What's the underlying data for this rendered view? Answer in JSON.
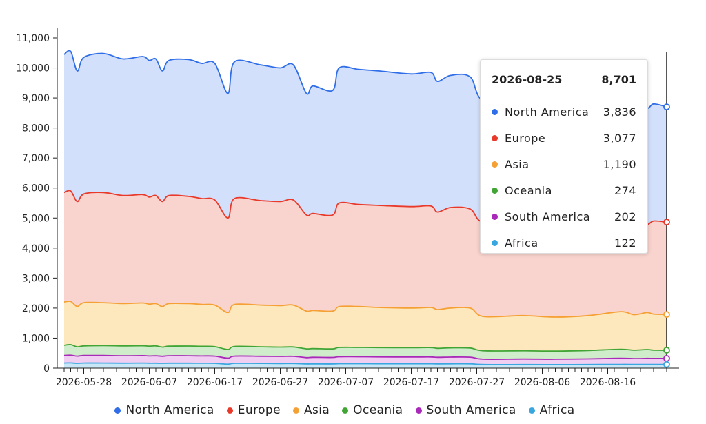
{
  "chart_data": {
    "type": "area",
    "stacked": true,
    "x_start": "2026-05-25",
    "x_end": "2026-08-25",
    "x_ticks": [
      "2026-05-28",
      "2026-06-07",
      "2026-06-17",
      "2026-06-27",
      "2026-07-07",
      "2026-07-17",
      "2026-07-27",
      "2026-08-06",
      "2026-08-16"
    ],
    "y_ticks": [
      0,
      1000,
      2000,
      3000,
      4000,
      5000,
      6000,
      7000,
      8000,
      9000,
      10000,
      11000
    ],
    "ylim": [
      0,
      11000
    ],
    "grid": false,
    "legend_position": "bottom",
    "cumulative_anchors": [
      {
        "date": "2026-05-25",
        "North America": 10450,
        "Europe": 5850,
        "Asia": 2200,
        "Oceania": 760,
        "South America": 420,
        "Africa": 170
      },
      {
        "date": "2026-05-26",
        "North America": 10550,
        "Europe": 5900,
        "Asia": 2220,
        "Oceania": 780,
        "South America": 430,
        "Africa": 175
      },
      {
        "date": "2026-05-27",
        "North America": 9900,
        "Europe": 5550,
        "Asia": 2050,
        "Oceania": 710,
        "South America": 400,
        "Africa": 160
      },
      {
        "date": "2026-05-28",
        "North America": 10350,
        "Europe": 5800,
        "Asia": 2180,
        "Oceania": 740,
        "South America": 420,
        "Africa": 170
      },
      {
        "date": "2026-05-31",
        "North America": 10480,
        "Europe": 5850,
        "Asia": 2180,
        "Oceania": 750,
        "South America": 420,
        "Africa": 170
      },
      {
        "date": "2026-06-03",
        "North America": 10300,
        "Europe": 5750,
        "Asia": 2150,
        "Oceania": 740,
        "South America": 410,
        "Africa": 165
      },
      {
        "date": "2026-06-06",
        "North America": 10380,
        "Europe": 5780,
        "Asia": 2170,
        "Oceania": 745,
        "South America": 415,
        "Africa": 170
      },
      {
        "date": "2026-06-07",
        "North America": 10250,
        "Europe": 5700,
        "Asia": 2130,
        "Oceania": 730,
        "South America": 405,
        "Africa": 165
      },
      {
        "date": "2026-06-08",
        "North America": 10300,
        "Europe": 5750,
        "Asia": 2150,
        "Oceania": 740,
        "South America": 410,
        "Africa": 165
      },
      {
        "date": "2026-06-09",
        "North America": 9900,
        "Europe": 5550,
        "Asia": 2050,
        "Oceania": 700,
        "South America": 395,
        "Africa": 160
      },
      {
        "date": "2026-06-10",
        "North America": 10250,
        "Europe": 5750,
        "Asia": 2150,
        "Oceania": 730,
        "South America": 410,
        "Africa": 165
      },
      {
        "date": "2026-06-13",
        "North America": 10280,
        "Europe": 5720,
        "Asia": 2150,
        "Oceania": 735,
        "South America": 410,
        "Africa": 165
      },
      {
        "date": "2026-06-15",
        "North America": 10150,
        "Europe": 5650,
        "Asia": 2120,
        "Oceania": 725,
        "South America": 405,
        "Africa": 163
      },
      {
        "date": "2026-06-17",
        "North America": 10150,
        "Europe": 5600,
        "Asia": 2100,
        "Oceania": 715,
        "South America": 400,
        "Africa": 160
      },
      {
        "date": "2026-06-19",
        "North America": 9150,
        "Europe": 5000,
        "Asia": 1850,
        "Oceania": 620,
        "South America": 330,
        "Africa": 130
      },
      {
        "date": "2026-06-20",
        "North America": 10200,
        "Europe": 5650,
        "Asia": 2120,
        "Oceania": 720,
        "South America": 400,
        "Africa": 160
      },
      {
        "date": "2026-06-24",
        "North America": 10100,
        "Europe": 5580,
        "Asia": 2100,
        "Oceania": 710,
        "South America": 395,
        "Africa": 158
      },
      {
        "date": "2026-06-27",
        "North America": 10000,
        "Europe": 5550,
        "Asia": 2080,
        "Oceania": 700,
        "South America": 390,
        "Africa": 155
      },
      {
        "date": "2026-06-29",
        "North America": 10100,
        "Europe": 5600,
        "Asia": 2100,
        "Oceania": 705,
        "South America": 392,
        "Africa": 156
      },
      {
        "date": "2026-07-01",
        "North America": 9150,
        "Europe": 5100,
        "Asia": 1900,
        "Oceania": 640,
        "South America": 350,
        "Africa": 140
      },
      {
        "date": "2026-07-02",
        "North America": 9400,
        "Europe": 5150,
        "Asia": 1920,
        "Oceania": 650,
        "South America": 360,
        "Africa": 142
      },
      {
        "date": "2026-07-05",
        "North America": 9250,
        "Europe": 5100,
        "Asia": 1900,
        "Oceania": 640,
        "South America": 355,
        "Africa": 140
      },
      {
        "date": "2026-07-06",
        "North America": 10000,
        "Europe": 5500,
        "Asia": 2050,
        "Oceania": 690,
        "South America": 380,
        "Africa": 150
      },
      {
        "date": "2026-07-09",
        "North America": 9950,
        "Europe": 5450,
        "Asia": 2050,
        "Oceania": 690,
        "South America": 380,
        "Africa": 150
      },
      {
        "date": "2026-07-12",
        "North America": 9900,
        "Europe": 5420,
        "Asia": 2020,
        "Oceania": 685,
        "South America": 375,
        "Africa": 148
      },
      {
        "date": "2026-07-17",
        "North America": 9800,
        "Europe": 5380,
        "Asia": 2000,
        "Oceania": 680,
        "South America": 370,
        "Africa": 147
      },
      {
        "date": "2026-07-20",
        "North America": 9850,
        "Europe": 5400,
        "Asia": 2020,
        "Oceania": 685,
        "South America": 372,
        "Africa": 147
      },
      {
        "date": "2026-07-21",
        "North America": 9550,
        "Europe": 5200,
        "Asia": 1950,
        "Oceania": 660,
        "South America": 360,
        "Africa": 142
      },
      {
        "date": "2026-07-23",
        "North America": 9750,
        "Europe": 5350,
        "Asia": 2000,
        "Oceania": 675,
        "South America": 368,
        "Africa": 145
      },
      {
        "date": "2026-07-26",
        "North America": 9700,
        "Europe": 5300,
        "Asia": 2000,
        "Oceania": 670,
        "South America": 365,
        "Africa": 145
      },
      {
        "date": "2026-07-28",
        "North America": 8900,
        "Europe": 4850,
        "Asia": 1720,
        "Oceania": 580,
        "South America": 300,
        "Africa": 120
      },
      {
        "date": "2026-08-03",
        "North America": 8850,
        "Europe": 4800,
        "Asia": 1750,
        "Oceania": 580,
        "South America": 305,
        "Africa": 120
      },
      {
        "date": "2026-08-08",
        "North America": 8750,
        "Europe": 4750,
        "Asia": 1700,
        "Oceania": 570,
        "South America": 300,
        "Africa": 118
      },
      {
        "date": "2026-08-13",
        "North America": 8800,
        "Europe": 4800,
        "Asia": 1750,
        "Oceania": 590,
        "South America": 310,
        "Africa": 120
      },
      {
        "date": "2026-08-18",
        "North America": 8850,
        "Europe": 4850,
        "Asia": 1880,
        "Oceania": 630,
        "South America": 330,
        "Africa": 125
      },
      {
        "date": "2026-08-20",
        "North America": 8750,
        "Europe": 4800,
        "Asia": 1780,
        "Oceania": 600,
        "South America": 320,
        "Africa": 122
      },
      {
        "date": "2026-08-22",
        "North America": 8650,
        "Europe": 4780,
        "Asia": 1850,
        "Oceania": 620,
        "South America": 325,
        "Africa": 122
      },
      {
        "date": "2026-08-23",
        "North America": 8800,
        "Europe": 4900,
        "Asia": 1800,
        "Oceania": 600,
        "South America": 324,
        "Africa": 122
      },
      {
        "date": "2026-08-25",
        "North America": 8701,
        "Europe": 4865,
        "Asia": 1788,
        "Oceania": 598,
        "South America": 324,
        "Africa": 122
      }
    ],
    "series": [
      {
        "name": "North America",
        "color": "#2f6ee8",
        "fill": "#d3e0fb"
      },
      {
        "name": "Europe",
        "color": "#e8392a",
        "fill": "#f9d3cd"
      },
      {
        "name": "Asia",
        "color": "#f5a034",
        "fill": "#fde8bd"
      },
      {
        "name": "Oceania",
        "color": "#40a535",
        "fill": "#cfeccb"
      },
      {
        "name": "South America",
        "color": "#a92ab8",
        "fill": "#f1cff3"
      },
      {
        "name": "Africa",
        "color": "#3aa6e0",
        "fill": "#c9e7f7"
      }
    ],
    "tooltip": {
      "date": "2026-08-25",
      "total": "8,701",
      "rows": [
        {
          "name": "North America",
          "value": "3,836",
          "color": "#2f6ee8"
        },
        {
          "name": "Europe",
          "value": "3,077",
          "color": "#e8392a"
        },
        {
          "name": "Asia",
          "value": "1,190",
          "color": "#f5a034"
        },
        {
          "name": "Oceania",
          "value": "274",
          "color": "#40a535"
        },
        {
          "name": "South America",
          "value": "202",
          "color": "#a92ab8"
        },
        {
          "name": "Africa",
          "value": "122",
          "color": "#3aa6e0"
        }
      ]
    }
  }
}
